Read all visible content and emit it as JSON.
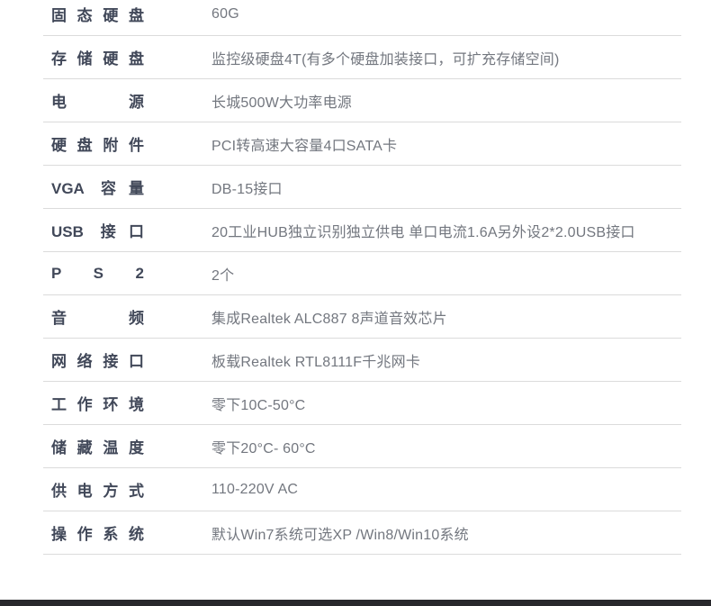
{
  "colors": {
    "label": "#414859",
    "value": "#73777f",
    "divider": "#dbdbdb",
    "bottom_bar": "#28282c",
    "background": "#ffffff"
  },
  "spec_table": {
    "rows": [
      {
        "label": "固态硬盘",
        "value": "60G"
      },
      {
        "label": "存储硬盘",
        "value": "监控级硬盘4T(有多个硬盘加装接口，可扩充存储空间)"
      },
      {
        "label": "电源",
        "value": "长城500W大功率电源"
      },
      {
        "label": "硬盘附件",
        "value": "PCI转高速大容量4口SATA卡"
      },
      {
        "label": "VGA 容量",
        "value": "DB-15接口"
      },
      {
        "label": "USB 接口",
        "value": "20工业HUB独立识别独立供电 单口电流1.6A另外设2*2.0USB接口"
      },
      {
        "label": "P S 2",
        "value": "2个"
      },
      {
        "label": "音频",
        "value": "集成Realtek ALC887 8声道音效芯片"
      },
      {
        "label": "网络接口",
        "value": "板载Realtek RTL8111F千兆网卡"
      },
      {
        "label": "工作环境",
        "value": "零下10C-50°C"
      },
      {
        "label": "储藏温度",
        "value": "零下20°C- 60°C"
      },
      {
        "label": "供电方式",
        "value": "110-220V AC"
      },
      {
        "label": "操作系统",
        "value": "默认Win7系统可选XP /Win8/Win10系统"
      }
    ]
  }
}
